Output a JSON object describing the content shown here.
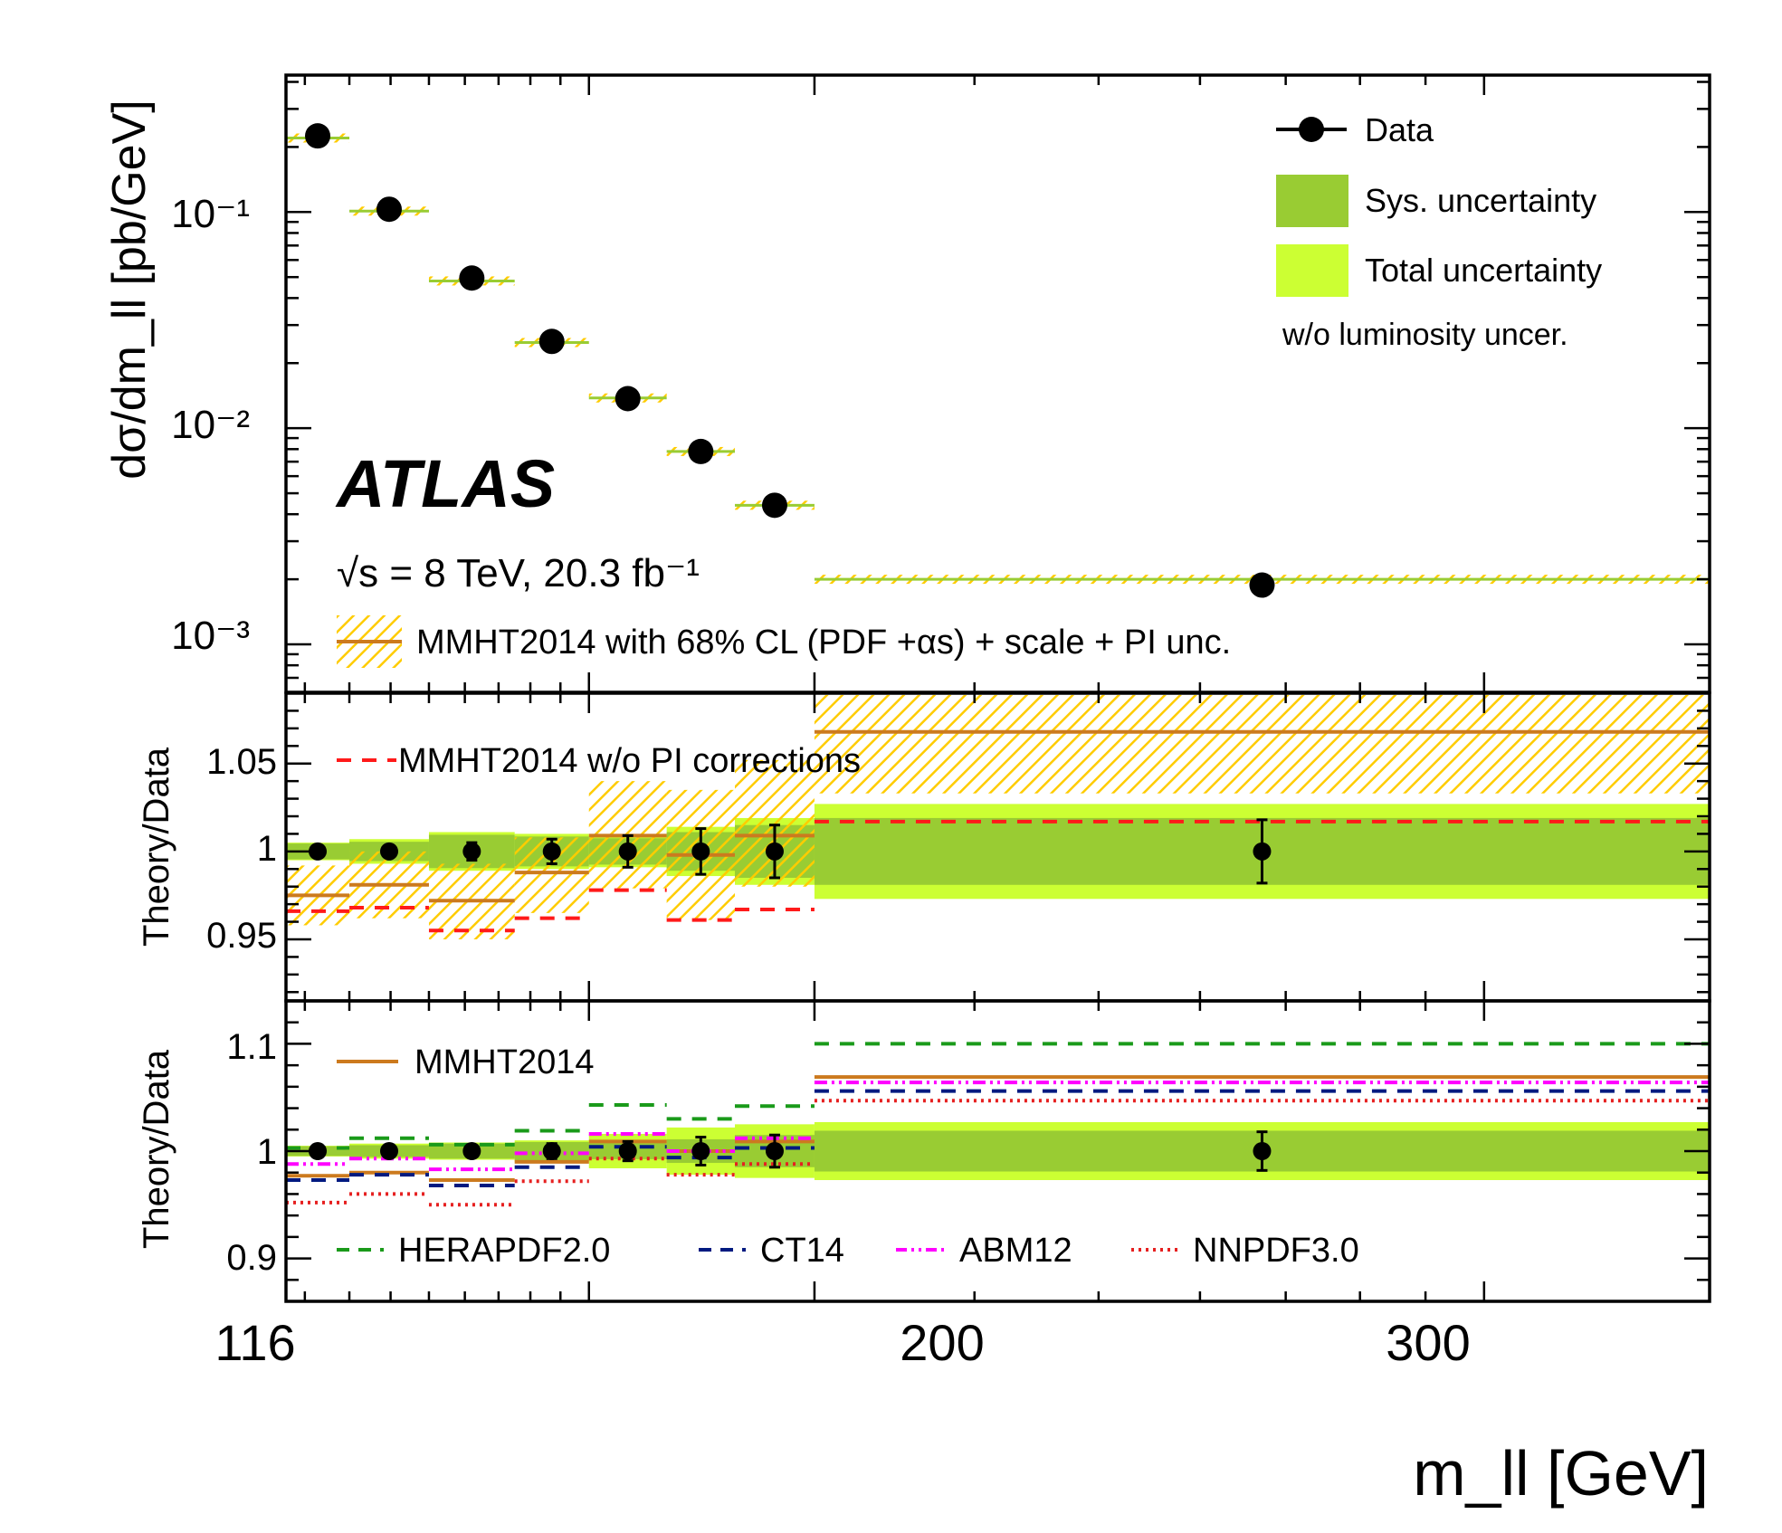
{
  "colors": {
    "data": "#000000",
    "sys_band": "#99cc33",
    "total_band": "#ccff33",
    "mmht_line": "#cc7a1e",
    "mmht_hatch": "#ffcc00",
    "no_pi": "#ff1a1a",
    "herapdf": "#1a9a1a",
    "ct14": "#001a80",
    "abm12": "#ff00ff",
    "nnpdf": "#e62020"
  },
  "labels": {
    "atlas": "ATLAS",
    "energy_lumi": "√s = 8 TeV, 20.3 fb⁻¹",
    "ylabel_top": "dσ/dm_ll [pb/GeV]",
    "ylabel_ratio": "Theory/Data",
    "xlabel": "m_ll [GeV]"
  },
  "chart_data": [
    {
      "type": "scatter",
      "panel": "cross-section",
      "yscale": "log",
      "xlim": [
        116,
        1500
      ],
      "xscale": "log",
      "ylim": [
        0.0006,
        0.43
      ],
      "ytick_labels": [
        "10⁻³",
        "10⁻²",
        "10⁻¹"
      ],
      "bin_edges": [
        116,
        130,
        150,
        175,
        200,
        230,
        260,
        300,
        1500
      ],
      "series": [
        {
          "name": "Data",
          "values": [
            0.225,
            0.103,
            0.0495,
            0.0252,
            0.0137,
            0.0078,
            0.0044,
            0.00188
          ]
        },
        {
          "name": "MMHT2014 with 68% CL (PDF +αs) + scale + PI unc.",
          "values": [
            0.22,
            0.101,
            0.048,
            0.0249,
            0.0138,
            0.0078,
            0.0044,
            0.002
          ]
        }
      ],
      "legend": [
        "Data",
        "Sys. uncertainty",
        "Total uncertainty",
        "w/o luminosity uncer."
      ],
      "annotations": [
        "ATLAS",
        "√s = 8 TeV, 20.3 fb⁻¹",
        "MMHT2014 with 68% CL (PDF +αs) + scale + PI unc."
      ],
      "grid": false
    },
    {
      "type": "line",
      "panel": "ratio-1",
      "ylabel": "Theory/Data",
      "ylim": [
        0.915,
        1.09
      ],
      "ytick_labels": [
        "0.95",
        "1",
        "1.05"
      ],
      "bin_edges": [
        116,
        130,
        150,
        175,
        200,
        230,
        260,
        300,
        1500
      ],
      "data_error": [
        0.0015,
        0.003,
        0.005,
        0.007,
        0.009,
        0.013,
        0.015,
        0.018
      ],
      "sys_band": [
        0.0045,
        0.0055,
        0.0095,
        0.0085,
        0.0075,
        0.011,
        0.015,
        0.019
      ],
      "total_band": [
        0.005,
        0.007,
        0.011,
        0.01,
        0.009,
        0.014,
        0.019,
        0.027
      ],
      "series": [
        {
          "name": "MMHT2014",
          "values": [
            0.975,
            0.981,
            0.972,
            0.988,
            1.009,
            0.998,
            1.009,
            1.068
          ]
        },
        {
          "name": "MMHT2014 unc. low",
          "values": [
            0.958,
            0.962,
            0.95,
            0.965,
            0.979,
            0.961,
            0.98,
            1.033
          ]
        },
        {
          "name": "MMHT2014 unc. high",
          "values": [
            0.992,
            1.0,
            0.993,
            1.008,
            1.04,
            1.035,
            1.052,
            1.091
          ]
        },
        {
          "name": "MMHT2014 w/o PI corrections",
          "values": [
            0.966,
            0.968,
            0.955,
            0.962,
            0.978,
            0.961,
            0.967,
            1.017
          ]
        }
      ],
      "legend": [
        "MMHT2014 w/o PI corrections"
      ]
    },
    {
      "type": "line",
      "panel": "ratio-2",
      "ylabel": "Theory/Data",
      "ylim": [
        0.86,
        1.14
      ],
      "ytick_labels": [
        "0.9",
        "1",
        "1.1"
      ],
      "bin_edges": [
        116,
        130,
        150,
        175,
        200,
        230,
        260,
        300,
        1500
      ],
      "data_error": [
        0.0015,
        0.003,
        0.004,
        0.007,
        0.009,
        0.013,
        0.015,
        0.018
      ],
      "sys_band": [
        0.0045,
        0.0055,
        0.007,
        0.0085,
        0.0075,
        0.011,
        0.015,
        0.019
      ],
      "total_band": [
        0.005,
        0.007,
        0.008,
        0.01,
        0.016,
        0.022,
        0.025,
        0.027
      ],
      "series": [
        {
          "name": "MMHT2014",
          "values": [
            0.977,
            0.98,
            0.973,
            0.99,
            1.009,
            1.0,
            1.009,
            1.069
          ]
        },
        {
          "name": "HERAPDF2.0",
          "values": [
            1.003,
            1.012,
            1.006,
            1.019,
            1.043,
            1.03,
            1.042,
            1.1
          ]
        },
        {
          "name": "CT14",
          "values": [
            0.973,
            0.978,
            0.968,
            0.985,
            1.004,
            0.994,
            1.003,
            1.056
          ]
        },
        {
          "name": "ABM12",
          "values": [
            0.988,
            0.993,
            0.983,
            0.998,
            1.016,
            1.0,
            1.012,
            1.064
          ]
        },
        {
          "name": "NNPDF3.0",
          "values": [
            0.952,
            0.96,
            0.95,
            0.972,
            0.993,
            0.978,
            0.988,
            1.047
          ]
        }
      ],
      "legend": [
        "MMHT2014",
        "HERAPDF2.0",
        "CT14",
        "ABM12",
        "NNPDF3.0"
      ]
    }
  ],
  "x_axis": {
    "tick_labels": [
      "116",
      "200",
      "300"
    ],
    "tick_values": [
      116,
      200,
      300
    ],
    "xlabel": "m_ll [GeV]"
  }
}
